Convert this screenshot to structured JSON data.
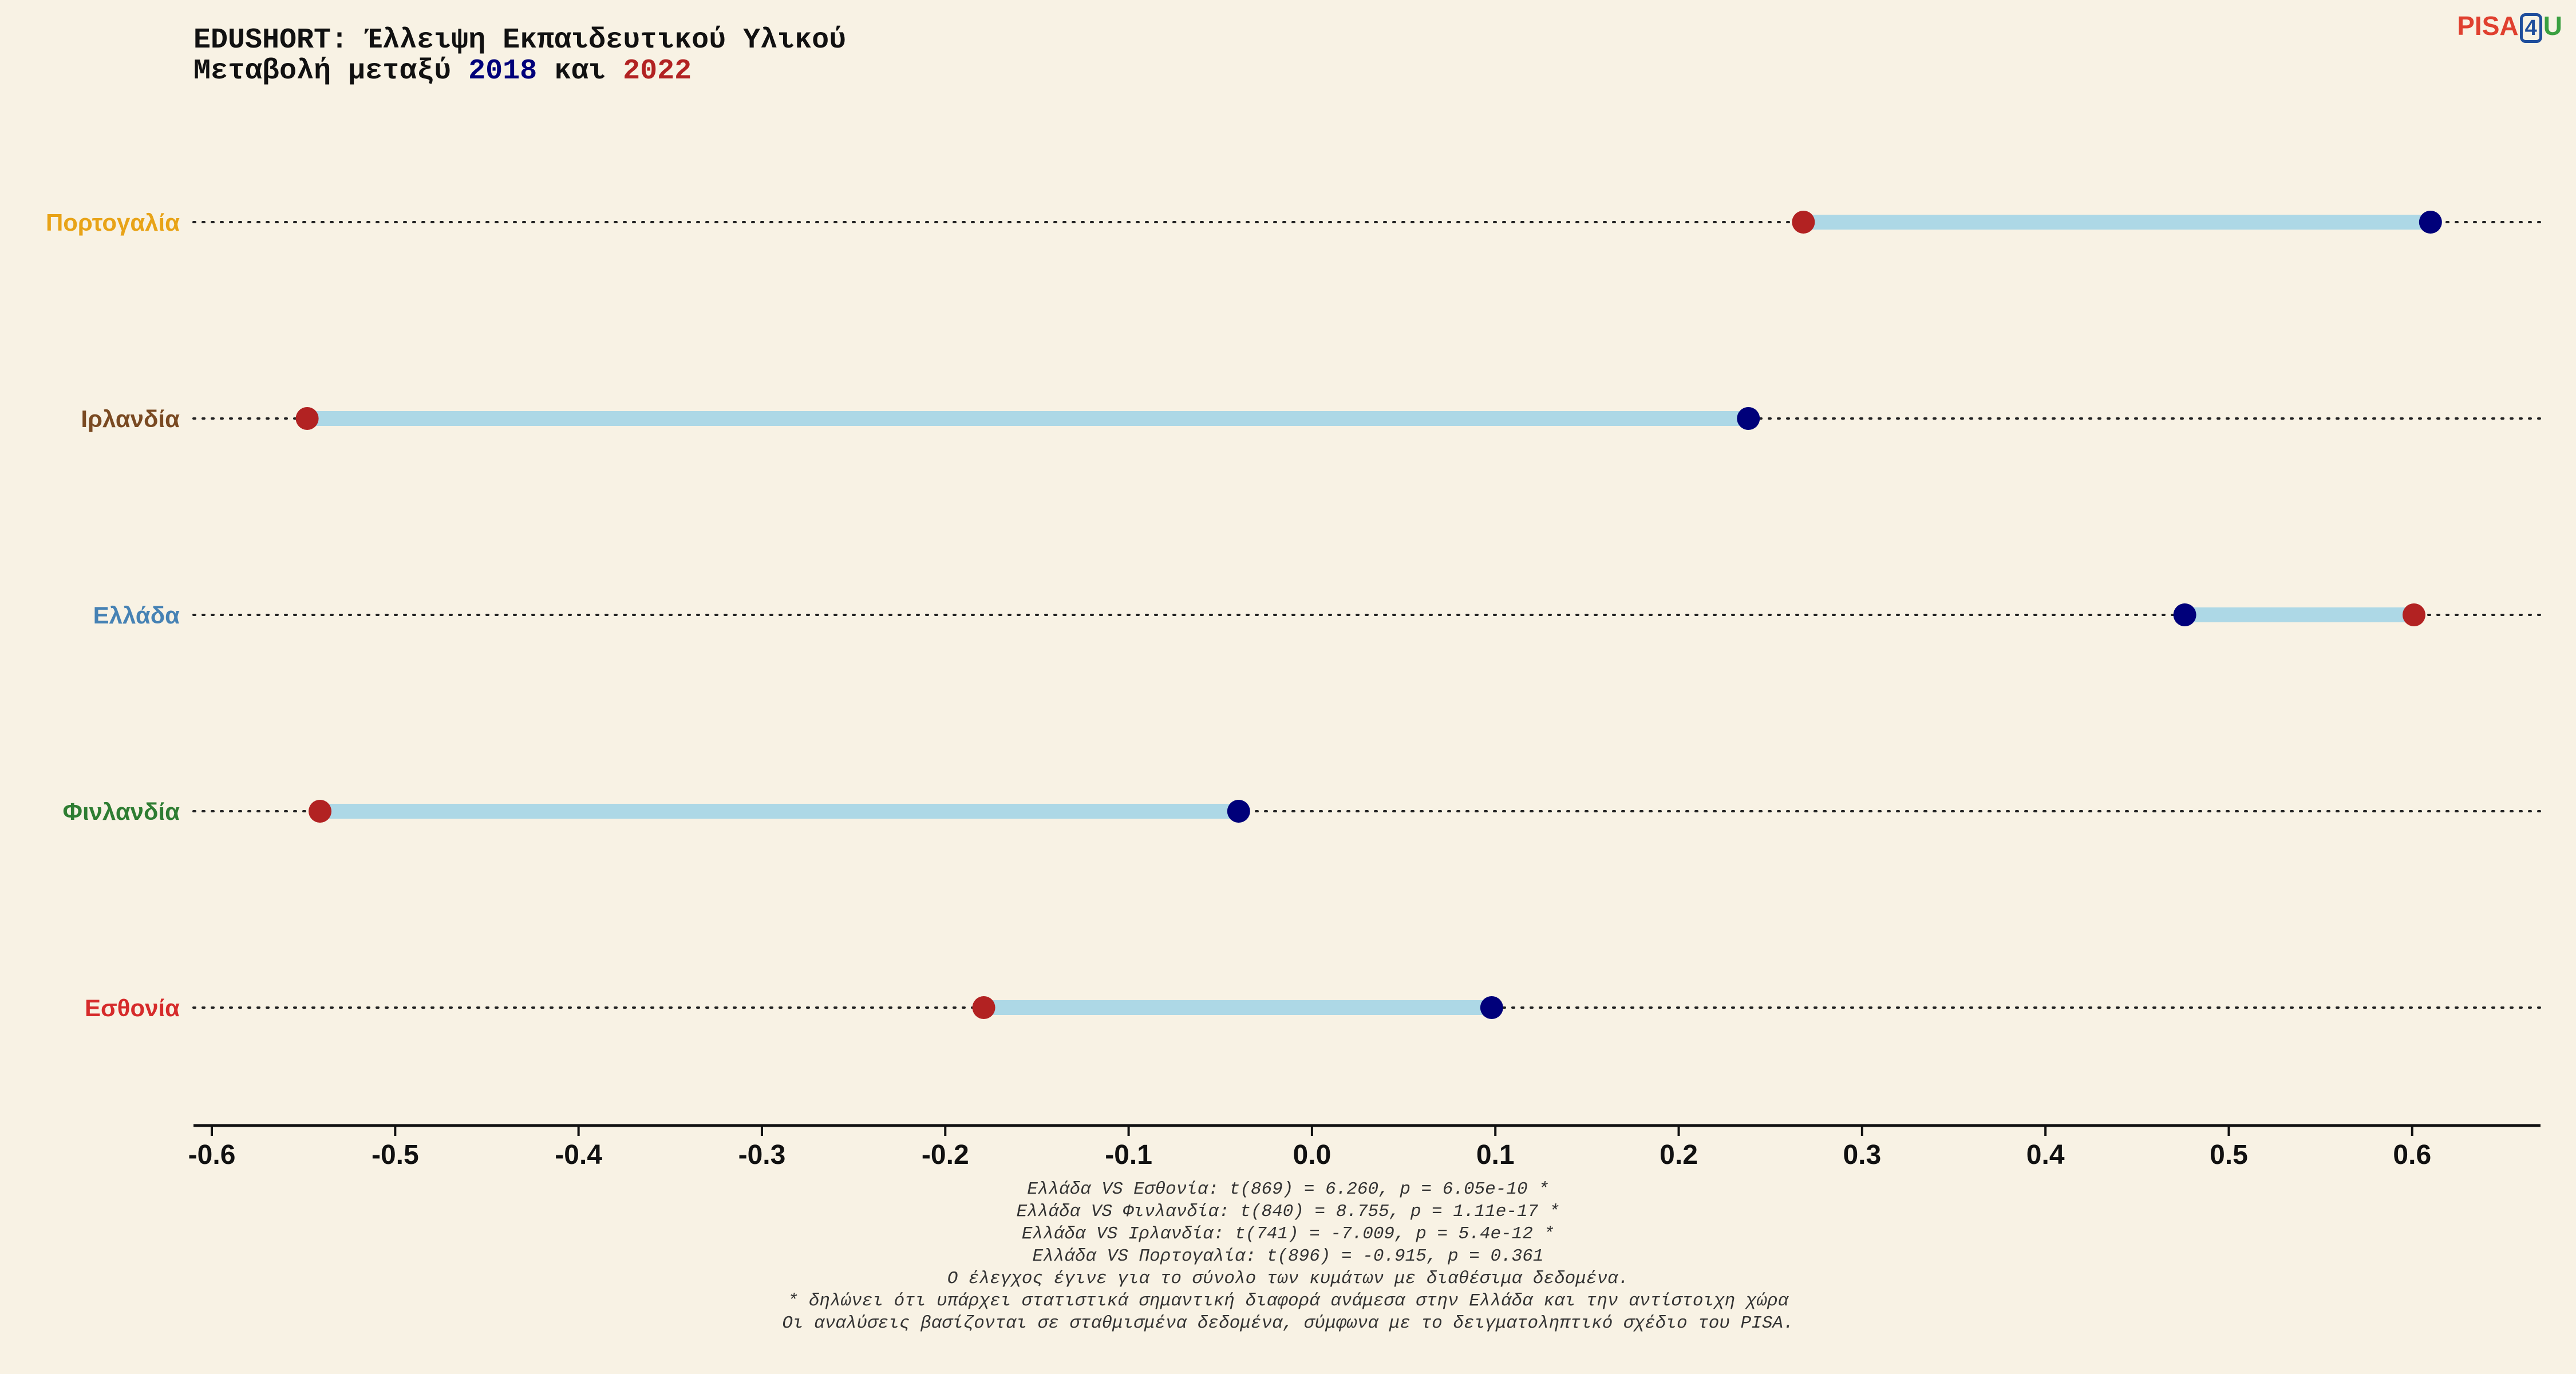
{
  "title": {
    "line1": "EDUSHORT: Έλλειψη Εκπαιδευτικού Υλικού",
    "line2_prefix": "Μεταβολή μεταξύ ",
    "year_a": "2018",
    "line2_mid": " και ",
    "year_b": "2022"
  },
  "logo": {
    "part1": "PISA",
    "part2": "4",
    "part3": "U"
  },
  "colors": {
    "background": "#f8f2e4",
    "year_2018": "#00007a",
    "year_2022": "#b22222",
    "range_bar": "#add8e6",
    "Πορτογαλία": "#e8a317",
    "Ιρλανδία": "#7a4a22",
    "Ελλάδα": "#4682b4",
    "Φινλανδία": "#2e7d32",
    "Εσθονία": "#d62b2b"
  },
  "chart_data": {
    "type": "dumbbell",
    "xlim": [
      -0.61,
      0.67
    ],
    "xticks": [
      -0.6,
      -0.5,
      -0.4,
      -0.3,
      -0.2,
      -0.1,
      0.0,
      0.1,
      0.2,
      0.3,
      0.4,
      0.5,
      0.6
    ],
    "xtick_labels": [
      "-0.6",
      "-0.5",
      "-0.4",
      "-0.3",
      "-0.2",
      "-0.1",
      "0.0",
      "0.1",
      "0.2",
      "0.3",
      "0.4",
      "0.5",
      "0.6"
    ],
    "series_names": [
      "2018",
      "2022"
    ],
    "categories": [
      "Πορτογαλία",
      "Ιρλανδία",
      "Ελλάδα",
      "Φινλανδία",
      "Εσθονία"
    ],
    "values_2018": [
      0.61,
      0.238,
      0.476,
      -0.04,
      0.098
    ],
    "values_2022": [
      0.268,
      -0.548,
      0.601,
      -0.541,
      -0.179
    ]
  },
  "footnotes": [
    "Ελλάδα VS Εσθονία: t(869) = 6.260, p = 6.05e-10 *",
    "Ελλάδα VS Φινλανδία: t(840) = 8.755, p = 1.11e-17 *",
    "Ελλάδα VS Ιρλανδία: t(741) = -7.009, p = 5.4e-12 *",
    "Ελλάδα VS Πορτογαλία: t(896) = -0.915, p = 0.361",
    "Ο έλεγχος έγινε για το σύνολο των κυμάτων με διαθέσιμα δεδομένα.",
    "* δηλώνει ότι υπάρχει στατιστικά σημαντική διαφορά ανάμεσα στην Ελλάδα και την αντίστοιχη χώρα",
    "Οι αναλύσεις βασίζονται σε σταθμισμένα δεδομένα, σύμφωνα με το δειγματοληπτικό σχέδιο του PISA."
  ]
}
